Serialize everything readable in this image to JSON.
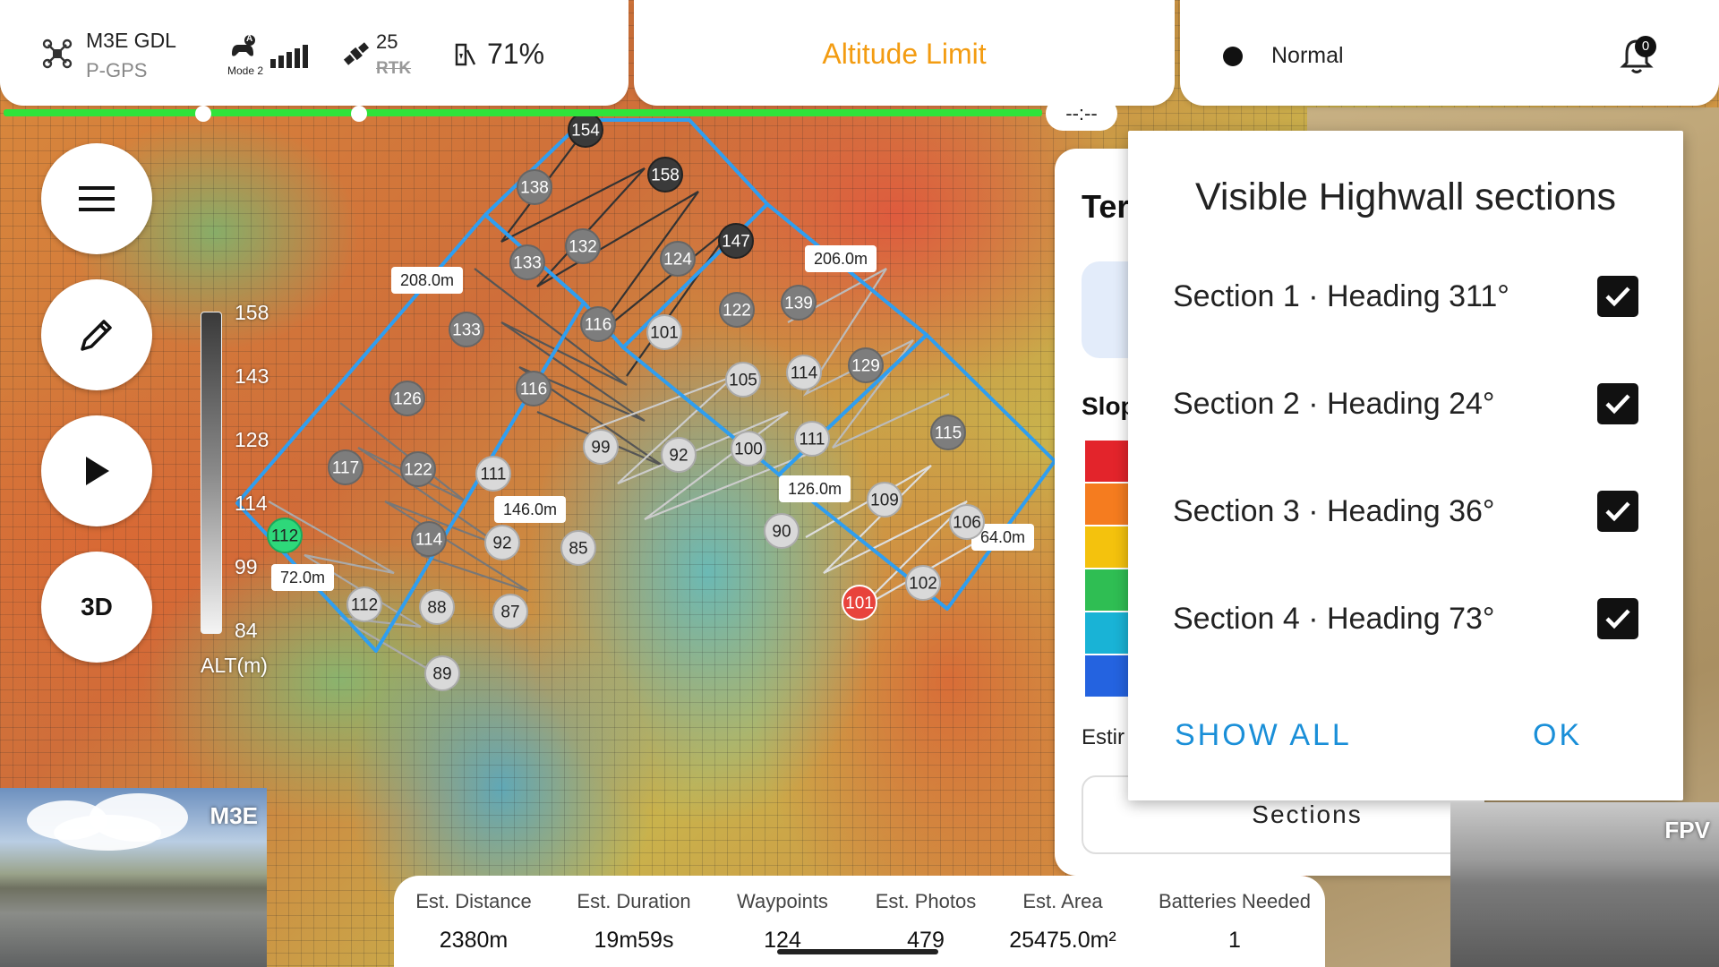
{
  "status_bar": {
    "drone_model": "M3E GDL",
    "gps_mode": "P-GPS",
    "rc_mode": "Mode 2",
    "rc_badge": "A",
    "satellite_count": "25",
    "rtk_label": "RTK",
    "battery_percent": "71%",
    "center_title": "Altitude Limit",
    "flight_status": "Normal",
    "notification_count": "0",
    "time_readout": "--:--",
    "accent_color": "#f39c12",
    "progress_color": "#2fe33a"
  },
  "left_controls": {
    "menu_icon": "hamburger-icon",
    "edit_icon": "pencil-icon",
    "play_icon": "play-icon",
    "view_toggle_label": "3D"
  },
  "altitude_legend": {
    "ticks": [
      "158",
      "143",
      "128",
      "114",
      "99",
      "84"
    ],
    "unit": "ALT(m)"
  },
  "map": {
    "waypoints": [
      {
        "label": "154",
        "tone": "dark"
      },
      {
        "label": "158",
        "tone": "dark"
      },
      {
        "label": "138",
        "tone": "mid"
      },
      {
        "label": "147",
        "tone": "dark"
      },
      {
        "label": "132",
        "tone": "mid"
      },
      {
        "label": "133",
        "tone": "mid"
      },
      {
        "label": "124",
        "tone": "mid"
      },
      {
        "label": "139",
        "tone": "mid"
      },
      {
        "label": "122",
        "tone": "mid"
      },
      {
        "label": "133",
        "tone": "mid"
      },
      {
        "label": "116",
        "tone": "mid"
      },
      {
        "label": "101",
        "tone": "light"
      },
      {
        "label": "129",
        "tone": "mid"
      },
      {
        "label": "105",
        "tone": "light"
      },
      {
        "label": "114",
        "tone": "light"
      },
      {
        "label": "126",
        "tone": "mid"
      },
      {
        "label": "116",
        "tone": "mid"
      },
      {
        "label": "99",
        "tone": "light"
      },
      {
        "label": "92",
        "tone": "light"
      },
      {
        "label": "100",
        "tone": "light"
      },
      {
        "label": "111",
        "tone": "light"
      },
      {
        "label": "115",
        "tone": "mid"
      },
      {
        "label": "117",
        "tone": "mid"
      },
      {
        "label": "122",
        "tone": "mid"
      },
      {
        "label": "111",
        "tone": "light"
      },
      {
        "label": "109",
        "tone": "light"
      },
      {
        "label": "106",
        "tone": "light"
      },
      {
        "label": "90",
        "tone": "light"
      },
      {
        "label": "112",
        "tone": "green"
      },
      {
        "label": "114",
        "tone": "mid"
      },
      {
        "label": "92",
        "tone": "light"
      },
      {
        "label": "85",
        "tone": "light"
      },
      {
        "label": "102",
        "tone": "light"
      },
      {
        "label": "101",
        "tone": "red"
      },
      {
        "label": "112",
        "tone": "light"
      },
      {
        "label": "88",
        "tone": "light"
      },
      {
        "label": "87",
        "tone": "light"
      },
      {
        "label": "89",
        "tone": "light"
      }
    ],
    "distances": [
      "208.0m",
      "206.0m",
      "146.0m",
      "126.0m",
      "64.0m",
      "72.0m"
    ],
    "boundary_color": "#2f9ef0"
  },
  "side_panel": {
    "title": "Ter",
    "slope_title": "Slop",
    "slope_colors": [
      "#e3242b",
      "#f57c1f",
      "#f4c20d",
      "#2fbe53",
      "#19b3d6",
      "#2463e0"
    ],
    "estimate_label": "Estir",
    "sections_button": "Sections"
  },
  "dialog": {
    "title": "Visible Highwall sections",
    "sections": [
      {
        "label": "Section 1 · Heading 311°",
        "checked": true
      },
      {
        "label": "Section 2 · Heading 24°",
        "checked": true
      },
      {
        "label": "Section 3 · Heading 36°",
        "checked": true
      },
      {
        "label": "Section 4 · Heading 73°",
        "checked": true
      }
    ],
    "show_all_label": "SHOW ALL",
    "ok_label": "OK",
    "button_color": "#1a8fd8"
  },
  "stats": [
    {
      "label": "Est. Distance",
      "value": "2380m"
    },
    {
      "label": "Est. Duration",
      "value": "19m59s"
    },
    {
      "label": "Waypoints",
      "value": "124"
    },
    {
      "label": "Est. Photos",
      "value": "479"
    },
    {
      "label": "Est. Area",
      "value": "25475.0m²"
    },
    {
      "label": "Batteries Needed",
      "value": "1"
    }
  ],
  "cameras": {
    "main_label": "M3E",
    "fpv_label": "FPV"
  }
}
